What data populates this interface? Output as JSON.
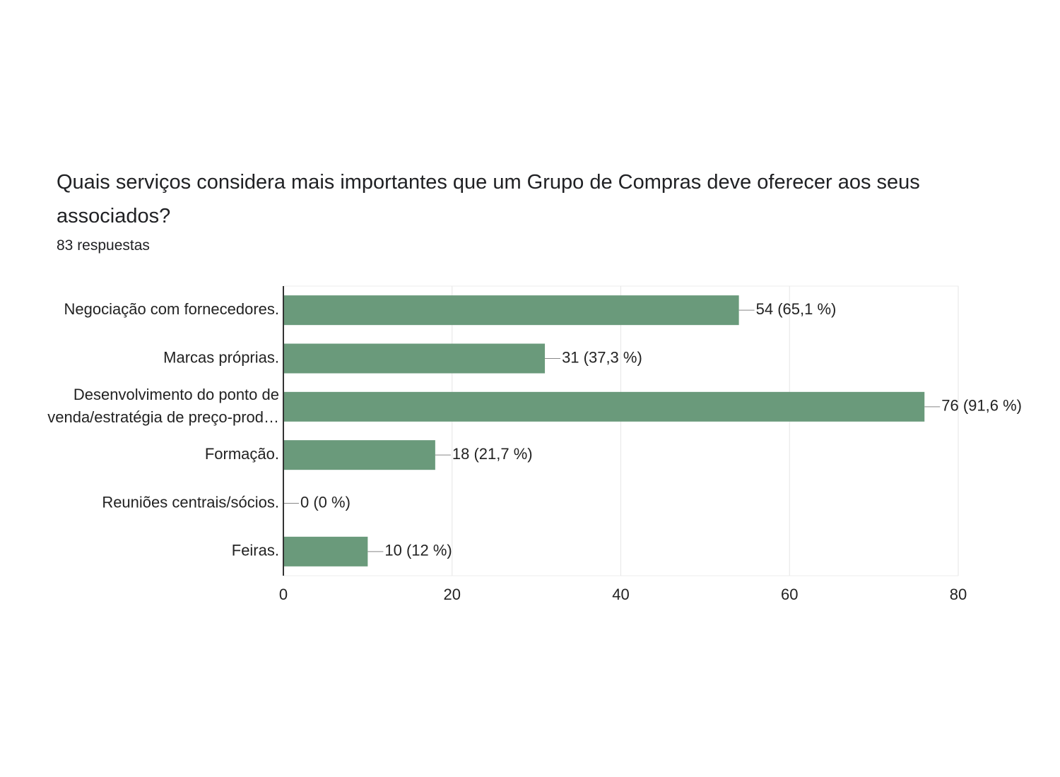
{
  "chart_data": {
    "type": "bar",
    "orientation": "horizontal",
    "title": "Quais serviços considera mais importantes que um Grupo de Compras deve oferecer aos seus associados?",
    "subtitle": "83 respuestas",
    "categories": [
      "Negociação com fornecedores.",
      "Marcas próprias.",
      "Desenvolvimento do ponto de\nvenda/estratégia de preço-prod…",
      "Formação.",
      "Reuniões centrais/sócios.",
      "Feiras."
    ],
    "values": [
      54,
      31,
      76,
      18,
      0,
      10
    ],
    "value_labels": [
      "54 (65,1 %)",
      "31 (37,3 %)",
      "76 (91,6 %)",
      "18 (21,7 %)",
      "0 (0 %)",
      "10 (12 %)"
    ],
    "color": "#6a9a7b",
    "xlim": [
      0,
      80
    ],
    "xticks": [
      0,
      20,
      40,
      60,
      80
    ],
    "grid": true
  }
}
